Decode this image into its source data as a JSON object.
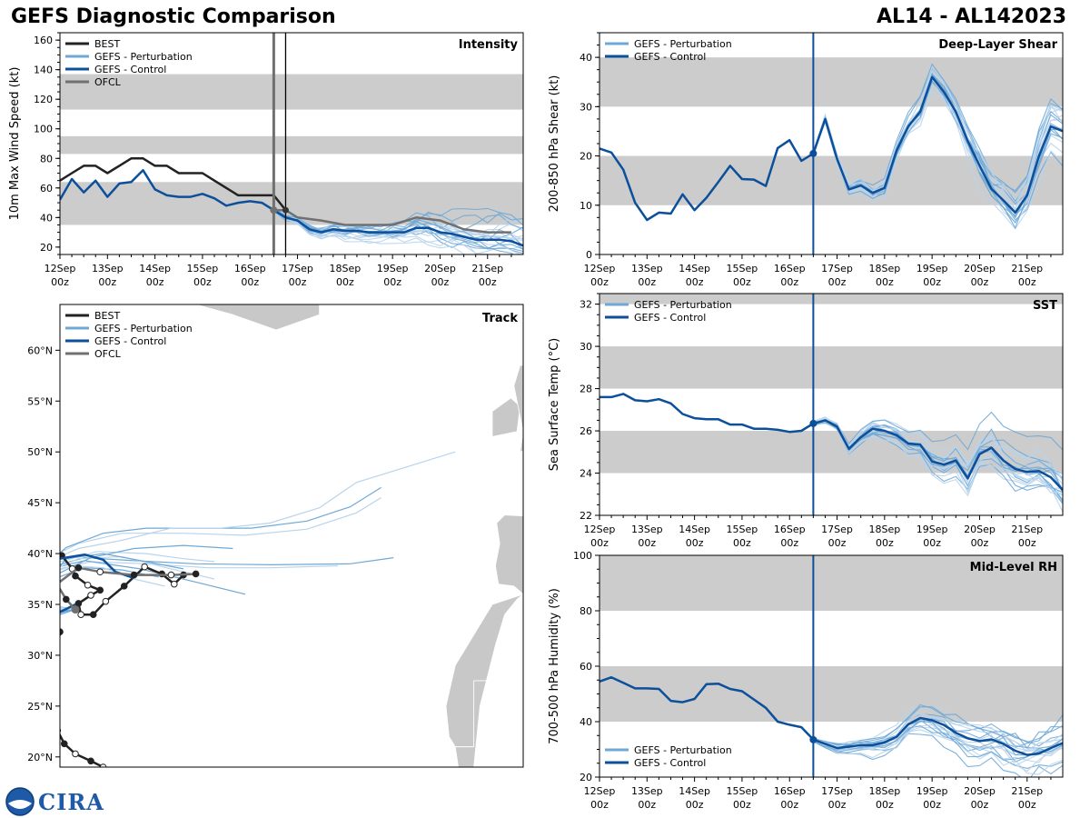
{
  "header": {
    "left_title": "GEFS Diagnostic Comparison",
    "right_title": "AL14 - AL142023"
  },
  "logo": {
    "text": "CIRA",
    "icon": "noaa-seal-icon"
  },
  "colors": {
    "best": "#222222",
    "perturbation": "#6fa8d6",
    "perturbation_light": "#b9d4ec",
    "control": "#0c4f9a",
    "ofcl": "#707070",
    "band": "#cccccc",
    "land": "#c8c8c8"
  },
  "time_axis": {
    "start_hour": 0,
    "end_hour": 234,
    "ticks": [
      {
        "hour": 0,
        "label1": "12Sep",
        "label2": "00z"
      },
      {
        "hour": 24,
        "label1": "13Sep",
        "label2": "00z"
      },
      {
        "hour": 48,
        "label1": "14Sep",
        "label2": "00z"
      },
      {
        "hour": 72,
        "label1": "15Sep",
        "label2": "00z"
      },
      {
        "hour": 96,
        "label1": "16Sep",
        "label2": "00z"
      },
      {
        "hour": 120,
        "label1": "17Sep",
        "label2": "00z"
      },
      {
        "hour": 144,
        "label1": "18Sep",
        "label2": "00z"
      },
      {
        "hour": 168,
        "label1": "19Sep",
        "label2": "00z"
      },
      {
        "hour": 192,
        "label1": "20Sep",
        "label2": "00z"
      },
      {
        "hour": 216,
        "label1": "21Sep",
        "label2": "00z"
      }
    ],
    "init_hour": 108
  },
  "chart_data": [
    {
      "type": "line",
      "id": "intensity",
      "title": "Intensity",
      "ylabel": "10m Max Wind Speed (kt)",
      "ylim": [
        15,
        165
      ],
      "yticks": [
        20,
        40,
        60,
        80,
        100,
        120,
        140,
        160
      ],
      "bands": [
        [
          35,
          64
        ],
        [
          83,
          95
        ],
        [
          113,
          137
        ]
      ],
      "vlines": [
        {
          "hour": 108,
          "kind": "init"
        },
        {
          "hour": 114,
          "kind": "ofcl"
        }
      ],
      "legend": [
        "BEST",
        "GEFS - Perturbation",
        "GEFS - Control",
        "OFCL"
      ],
      "series": [
        {
          "name": "BEST",
          "x": [
            0,
            6,
            12,
            18,
            24,
            30,
            36,
            42,
            48,
            54,
            60,
            66,
            72,
            78,
            84,
            90,
            96,
            102,
            108,
            114
          ],
          "values": [
            65,
            70,
            75,
            75,
            70,
            75,
            80,
            80,
            75,
            75,
            70,
            70,
            70,
            65,
            60,
            55,
            55,
            55,
            55,
            45
          ]
        },
        {
          "name": "GEFS - Control",
          "x": [
            0,
            6,
            12,
            18,
            24,
            30,
            36,
            42,
            48,
            54,
            60,
            66,
            72,
            78,
            84,
            90,
            96,
            102,
            108,
            114,
            120,
            126,
            132,
            138,
            144,
            150,
            156,
            162,
            168,
            174,
            180,
            186,
            192,
            198,
            204,
            210,
            216,
            222,
            228,
            234
          ],
          "values": [
            52,
            66,
            57,
            65,
            54,
            63,
            64,
            72,
            59,
            55,
            54,
            54,
            56,
            53,
            48,
            50,
            51,
            50,
            45,
            40,
            38,
            32,
            30,
            32,
            31,
            31,
            30,
            30,
            30,
            30,
            33,
            33,
            30,
            29,
            27,
            25,
            25,
            25,
            24,
            21
          ]
        },
        {
          "name": "OFCL",
          "x": [
            108,
            114,
            120,
            132,
            144,
            156,
            168,
            180,
            192,
            204,
            216,
            228
          ],
          "values": [
            45,
            45,
            40,
            38,
            35,
            35,
            35,
            40,
            38,
            32,
            30,
            30
          ]
        }
      ]
    },
    {
      "type": "line",
      "id": "shear",
      "title": "Deep-Layer Shear",
      "ylabel": "200-850 hPa Shear (kt)",
      "ylim": [
        0,
        45
      ],
      "yticks": [
        0,
        10,
        20,
        30,
        40
      ],
      "bands": [
        [
          10,
          20
        ],
        [
          30,
          40
        ]
      ],
      "vlines": [
        {
          "hour": 108,
          "kind": "init"
        }
      ],
      "legend": [
        "GEFS - Perturbation",
        "GEFS - Control"
      ],
      "series": [
        {
          "name": "GEFS - Control",
          "x": [
            0,
            6,
            12,
            18,
            24,
            30,
            36,
            42,
            48,
            54,
            60,
            66,
            72,
            78,
            84,
            90,
            96,
            102,
            108,
            114,
            120,
            126,
            132,
            138,
            144,
            150,
            156,
            162,
            168,
            174,
            180,
            186,
            192,
            198,
            204,
            210,
            216,
            222,
            228,
            234
          ],
          "values": [
            21.5,
            20.7,
            17.2,
            10.5,
            7,
            8.5,
            8.3,
            12.2,
            9,
            11.5,
            14.7,
            18,
            15.3,
            15.2,
            13.9,
            21.6,
            23.2,
            19,
            20.5,
            27.5,
            19.4,
            13.2,
            14,
            12.5,
            13.5,
            21,
            26,
            29,
            36,
            33,
            29,
            23,
            18,
            13.3,
            11,
            8.5,
            12,
            20,
            26,
            25
          ]
        }
      ]
    },
    {
      "type": "line",
      "id": "sst",
      "title": "SST",
      "ylabel": "Sea Surface Temp (°C)",
      "ylim": [
        22,
        32.5
      ],
      "yticks": [
        22,
        24,
        26,
        28,
        30,
        32
      ],
      "bands": [
        [
          24,
          26
        ],
        [
          28,
          30
        ],
        [
          32,
          32.5
        ]
      ],
      "vlines": [
        {
          "hour": 108,
          "kind": "init"
        }
      ],
      "legend": [
        "GEFS - Perturbation",
        "GEFS - Control"
      ],
      "series": [
        {
          "name": "GEFS - Control",
          "x": [
            0,
            6,
            12,
            18,
            24,
            30,
            36,
            42,
            48,
            54,
            60,
            66,
            72,
            78,
            84,
            90,
            96,
            102,
            108,
            114,
            120,
            126,
            132,
            138,
            144,
            150,
            156,
            162,
            168,
            174,
            180,
            186,
            192,
            198,
            204,
            210,
            216,
            222,
            228,
            234
          ],
          "values": [
            27.6,
            27.6,
            27.75,
            27.45,
            27.4,
            27.5,
            27.3,
            26.8,
            26.6,
            26.55,
            26.55,
            26.3,
            26.3,
            26.1,
            26.1,
            26.05,
            25.95,
            26.0,
            26.35,
            26.5,
            26.2,
            25.15,
            25.7,
            26.1,
            26.0,
            25.8,
            25.4,
            25.35,
            24.55,
            24.4,
            24.6,
            23.75,
            24.9,
            25.2,
            24.6,
            24.2,
            24.05,
            24.1,
            23.8,
            23.2
          ]
        }
      ]
    },
    {
      "type": "line",
      "id": "rh",
      "title": "Mid-Level RH",
      "ylabel": "700-500 hPa Humidity (%)",
      "ylim": [
        20,
        100
      ],
      "yticks": [
        20,
        40,
        60,
        80,
        100
      ],
      "bands": [
        [
          40,
          60
        ],
        [
          80,
          100
        ]
      ],
      "vlines": [
        {
          "hour": 108,
          "kind": "init"
        }
      ],
      "legend": [
        "GEFS - Perturbation",
        "GEFS - Control"
      ],
      "series": [
        {
          "name": "GEFS - Control",
          "x": [
            0,
            6,
            12,
            18,
            24,
            30,
            36,
            42,
            48,
            54,
            60,
            66,
            72,
            78,
            84,
            90,
            96,
            102,
            108,
            114,
            120,
            126,
            132,
            138,
            144,
            150,
            156,
            162,
            168,
            174,
            180,
            186,
            192,
            198,
            204,
            210,
            216,
            222,
            228,
            234
          ],
          "values": [
            54.5,
            56,
            54,
            52,
            52,
            51.8,
            47.5,
            47,
            48.2,
            53.5,
            53.7,
            51.8,
            51,
            48,
            45,
            40,
            38.9,
            38,
            33.5,
            32,
            30.5,
            31,
            31.5,
            31.5,
            32.5,
            34.5,
            39,
            41.3,
            40.5,
            38.8,
            36,
            34,
            33,
            33.6,
            32,
            29.5,
            28,
            28.5,
            30.5,
            32.3
          ]
        }
      ]
    },
    {
      "type": "scatter",
      "id": "track",
      "title": "Track",
      "xlim": [
        -80,
        -5
      ],
      "ylim": [
        19,
        64.5
      ],
      "yticks": [
        20,
        25,
        30,
        35,
        40,
        45,
        50,
        55,
        60
      ],
      "ytick_labels": [
        "20°N",
        "25°N",
        "30°N",
        "35°N",
        "40°N",
        "45°N",
        "50°N",
        "55°N",
        "60°N"
      ],
      "legend": [
        "BEST",
        "GEFS - Perturbation",
        "GEFS - Control",
        "OFCL"
      ],
      "series": [
        {
          "name": "BEST",
          "lon": [
            -73,
            -75,
            -77.5,
            -79.3,
            -80.4,
            -80.8,
            -80.9,
            -80.9,
            -80.6,
            -80.0,
            -80.5,
            -82,
            -83.6,
            -84.4,
            -83.7,
            -83.1,
            -82.0,
            -79.7,
            -78.0,
            -77.5,
            -75.5,
            -73.5,
            -75.0,
            -77.0,
            -76.6,
            -74.6,
            -72.6,
            -69.6,
            -66.3,
            -63.5,
            -61.5,
            -60.0
          ],
          "lat": [
            19.0,
            19.6,
            20.3,
            21.3,
            22.6,
            24.3,
            25.8,
            27.5,
            29.7,
            32.3,
            34.0,
            34.3,
            34.3,
            35.3,
            36.5,
            37.1,
            38.7,
            39.8,
            38.5,
            37.8,
            36.9,
            36.4,
            35.9,
            35.1,
            34.0,
            34.0,
            35.3,
            36.8,
            38.7,
            38.0,
            37.0,
            37.9
          ]
        },
        {
          "name": "GEFS - Control",
          "lon": [
            -77.5,
            -79.5,
            -81,
            -82,
            -83,
            -83.2,
            -82.5,
            -80,
            -76,
            -73,
            -71,
            -68
          ],
          "lat": [
            35,
            34.4,
            34,
            34.5,
            36,
            37.5,
            38.6,
            39.5,
            39.9,
            39.4,
            38.2,
            37.6
          ]
        },
        {
          "name": "OFCL",
          "lon": [
            -77.5,
            -79,
            -80.5,
            -77,
            -73.5,
            -68,
            -62,
            -58
          ],
          "lat": [
            34.5,
            35.5,
            37,
            38.6,
            38.2,
            37.9,
            37.9,
            38
          ]
        }
      ],
      "perturbation_tracks": [
        {
          "lon": [
            -77.5,
            -80,
            -83,
            -84,
            -82,
            -77,
            -70,
            -60,
            -50,
            -40,
            -32,
            -28
          ],
          "lat": [
            34.5,
            34.2,
            35,
            37.5,
            39.5,
            41,
            42,
            42,
            41.8,
            42.4,
            44,
            45.5
          ]
        },
        {
          "lon": [
            -77.5,
            -81,
            -84,
            -83,
            -79,
            -73,
            -66,
            -58,
            -49,
            -40,
            -33,
            -28
          ],
          "lat": [
            34.5,
            34.3,
            36,
            38.5,
            40.6,
            42,
            42.5,
            42.5,
            42.5,
            43.2,
            44.6,
            46.5
          ]
        },
        {
          "lon": [
            -77.5,
            -81,
            -83.5,
            -82,
            -77,
            -70,
            -62,
            -54,
            -46,
            -38,
            -32,
            -16
          ],
          "lat": [
            34.5,
            34.5,
            36.5,
            39.2,
            40.5,
            41.3,
            42.5,
            42.5,
            43,
            44.5,
            47,
            50
          ]
        },
        {
          "lon": [
            -77.5,
            -81,
            -83,
            -82,
            -76,
            -68,
            -58,
            -46,
            -33,
            -26
          ],
          "lat": [
            34.5,
            34.6,
            36.2,
            38.6,
            39.6,
            39.3,
            39,
            38.9,
            39,
            39.6
          ]
        },
        {
          "lon": [
            -77.5,
            -80.5,
            -82.5,
            -81.5,
            -75,
            -66,
            -56,
            -46,
            -35
          ],
          "lat": [
            34.5,
            34.5,
            36,
            38.3,
            39.2,
            39,
            38.6,
            38.6,
            38.8
          ]
        },
        {
          "lon": [
            -77.5,
            -81,
            -84,
            -83,
            -76,
            -67,
            -58,
            -50
          ],
          "lat": [
            34.5,
            34.3,
            35.8,
            38.3,
            39.3,
            38.5,
            37.2,
            36
          ]
        },
        {
          "lon": [
            -77.5,
            -80,
            -83,
            -82,
            -77,
            -70,
            -62,
            -55
          ],
          "lat": [
            34.5,
            34.1,
            35.5,
            38.2,
            39.5,
            39.7,
            38.5,
            37.5
          ]
        },
        {
          "lon": [
            -77.5,
            -80,
            -82.5,
            -81,
            -76,
            -70,
            -64
          ],
          "lat": [
            34.5,
            34.2,
            35.5,
            37.5,
            38.6,
            38.4,
            37.7
          ]
        },
        {
          "lon": [
            -77.5,
            -81,
            -82.5,
            -80,
            -74,
            -66,
            -60,
            -55
          ],
          "lat": [
            34.5,
            34.6,
            37,
            39.2,
            40.2,
            40,
            39.5,
            39.2
          ]
        },
        {
          "lon": [
            -77.5,
            -80.5,
            -82,
            -79,
            -73,
            -66,
            -60
          ],
          "lat": [
            34.5,
            34.8,
            37.2,
            39.5,
            40,
            39.2,
            38.5
          ]
        },
        {
          "lon": [
            -77.5,
            -81,
            -83,
            -82,
            -78,
            -73,
            -68,
            -63
          ],
          "lat": [
            34.5,
            34.8,
            36.5,
            38,
            38.8,
            38.6,
            37.5,
            36.8
          ]
        },
        {
          "lon": [
            -77.5,
            -80,
            -82,
            -81,
            -75,
            -68,
            -60,
            -52
          ],
          "lat": [
            34.5,
            34,
            35.2,
            37.8,
            39.6,
            40.5,
            40.8,
            40.5
          ]
        }
      ]
    }
  ]
}
